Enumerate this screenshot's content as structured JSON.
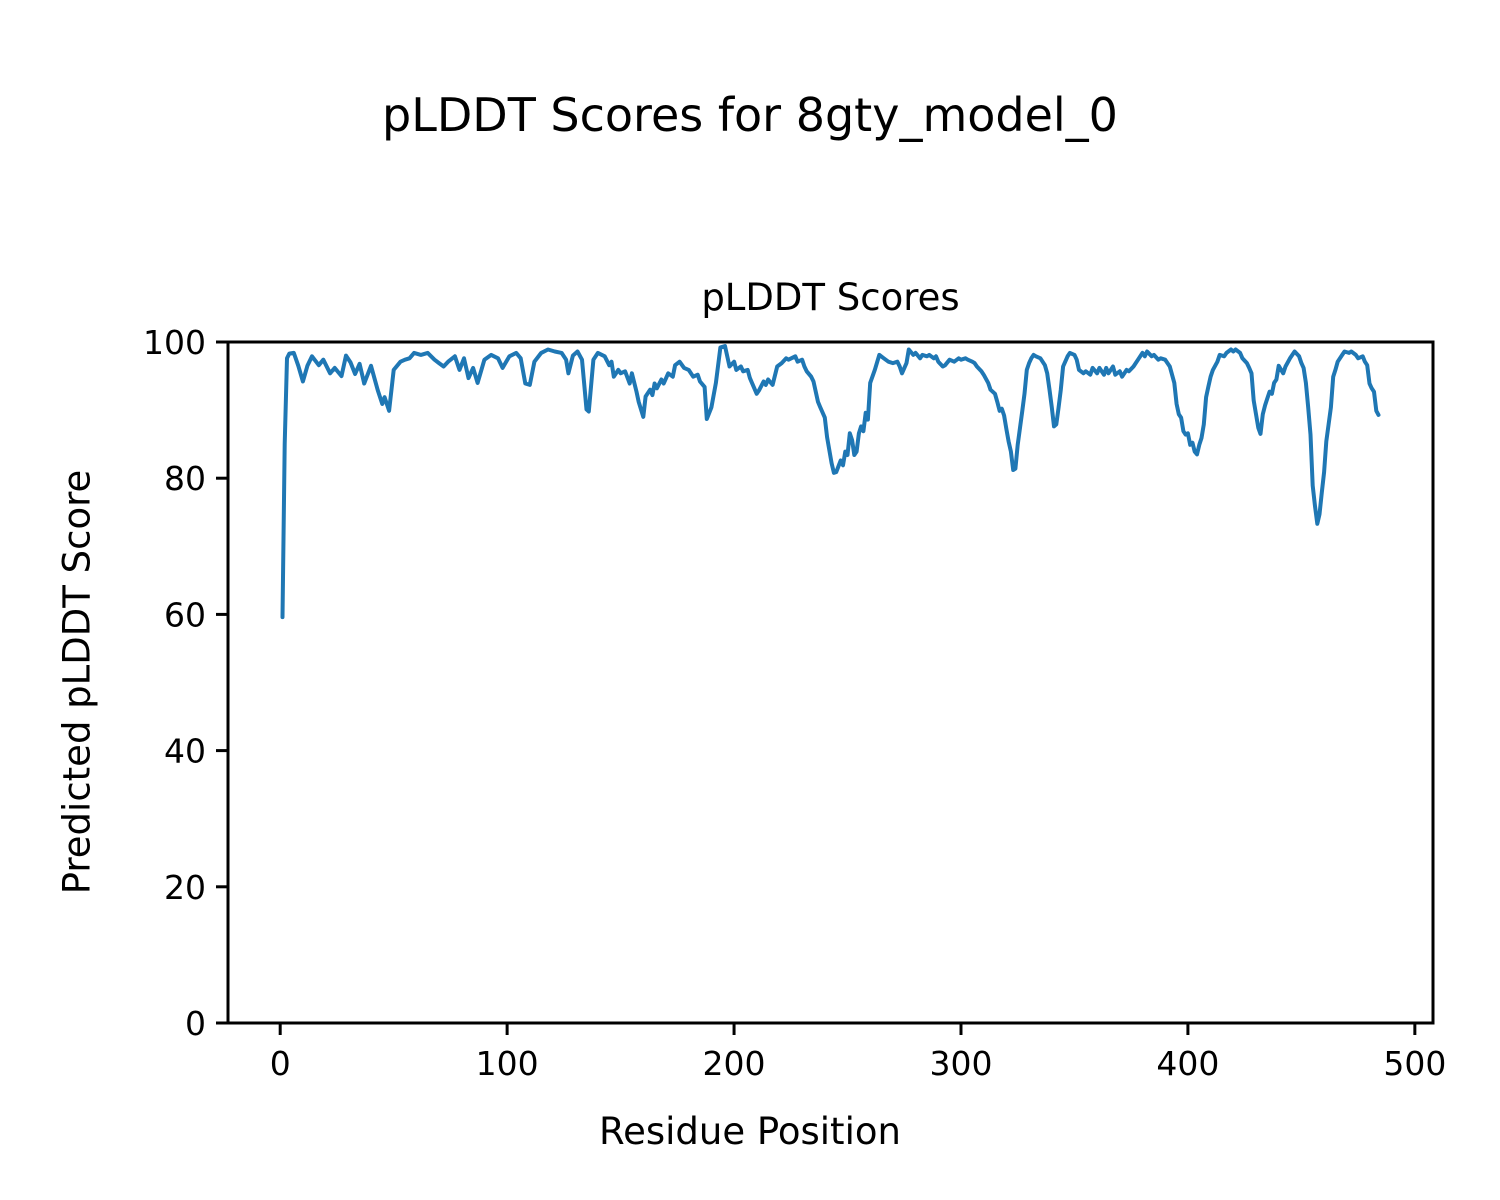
{
  "chart_data": {
    "type": "line",
    "suptitle": "pLDDT Scores for 8gty_model_0",
    "title": "pLDDT Scores",
    "xlabel": "Residue Position",
    "ylabel": "Predicted pLDDT Score",
    "xlim": [
      -23,
      508
    ],
    "ylim": [
      0,
      100
    ],
    "xticks": [
      0,
      100,
      200,
      300,
      400,
      500
    ],
    "yticks": [
      0,
      20,
      40,
      60,
      80,
      100
    ],
    "grid": false,
    "legend": "none",
    "line_color": "#1f77b4",
    "axis_color": "#000000",
    "series": [
      {
        "name": "pLDDT",
        "points": [
          [
            1,
            59.6
          ],
          [
            2,
            85
          ],
          [
            3,
            97.6
          ],
          [
            4,
            98.3
          ],
          [
            6,
            98.4
          ],
          [
            8,
            96.5
          ],
          [
            10,
            94.2
          ],
          [
            12,
            96.5
          ],
          [
            14,
            97.9
          ],
          [
            17,
            96.6
          ],
          [
            19,
            97.4
          ],
          [
            22,
            95.4
          ],
          [
            24,
            96.2
          ],
          [
            27,
            95.0
          ],
          [
            29,
            98.0
          ],
          [
            31,
            97.0
          ],
          [
            33,
            95.3
          ],
          [
            35,
            96.8
          ],
          [
            37,
            93.9
          ],
          [
            40,
            96.5
          ],
          [
            43,
            92.9
          ],
          [
            45,
            90.9
          ],
          [
            46,
            91.9
          ],
          [
            48,
            89.9
          ],
          [
            50,
            95.9
          ],
          [
            53,
            97.1
          ],
          [
            55,
            97.4
          ],
          [
            57,
            97.6
          ],
          [
            59,
            98.4
          ],
          [
            62,
            98.1
          ],
          [
            65,
            98.4
          ],
          [
            68,
            97.4
          ],
          [
            70,
            96.9
          ],
          [
            72,
            96.4
          ],
          [
            74,
            97.1
          ],
          [
            77,
            97.9
          ],
          [
            79,
            95.9
          ],
          [
            81,
            97.6
          ],
          [
            83,
            94.7
          ],
          [
            85,
            96.2
          ],
          [
            87,
            94.0
          ],
          [
            90,
            97.4
          ],
          [
            93,
            98.1
          ],
          [
            96,
            97.6
          ],
          [
            98,
            96.2
          ],
          [
            101,
            97.9
          ],
          [
            104,
            98.4
          ],
          [
            106,
            97.6
          ],
          [
            108,
            93.9
          ],
          [
            110,
            93.7
          ],
          [
            112,
            97.1
          ],
          [
            115,
            98.4
          ],
          [
            118,
            98.9
          ],
          [
            121,
            98.6
          ],
          [
            124,
            98.4
          ],
          [
            126,
            97.4
          ],
          [
            127,
            95.4
          ],
          [
            129,
            98.0
          ],
          [
            131,
            98.6
          ],
          [
            133,
            97.4
          ],
          [
            135,
            90.1
          ],
          [
            136,
            89.8
          ],
          [
            138,
            97.4
          ],
          [
            140,
            98.4
          ],
          [
            143,
            97.9
          ],
          [
            145,
            96.6
          ],
          [
            146,
            97.1
          ],
          [
            147,
            94.9
          ],
          [
            149,
            95.9
          ],
          [
            150,
            95.4
          ],
          [
            152,
            95.7
          ],
          [
            154,
            93.9
          ],
          [
            155,
            95.4
          ],
          [
            157,
            92.7
          ],
          [
            158,
            91.2
          ],
          [
            160,
            89.0
          ],
          [
            161,
            92.0
          ],
          [
            163,
            93.0
          ],
          [
            164,
            92.2
          ],
          [
            165,
            93.9
          ],
          [
            166,
            93.2
          ],
          [
            168,
            94.5
          ],
          [
            169,
            93.9
          ],
          [
            171,
            95.4
          ],
          [
            173,
            94.9
          ],
          [
            174,
            96.6
          ],
          [
            176,
            97.1
          ],
          [
            178,
            96.2
          ],
          [
            180,
            95.9
          ],
          [
            182,
            94.9
          ],
          [
            184,
            95.2
          ],
          [
            185,
            94.2
          ],
          [
            187,
            93.4
          ],
          [
            188,
            88.7
          ],
          [
            190,
            90.4
          ],
          [
            192,
            94.0
          ],
          [
            194,
            99.2
          ],
          [
            196,
            99.4
          ],
          [
            198,
            96.4
          ],
          [
            200,
            97.1
          ],
          [
            201,
            95.9
          ],
          [
            203,
            96.4
          ],
          [
            204,
            95.7
          ],
          [
            206,
            95.9
          ],
          [
            207,
            94.7
          ],
          [
            210,
            92.4
          ],
          [
            211,
            92.9
          ],
          [
            213,
            94.2
          ],
          [
            214,
            93.7
          ],
          [
            215,
            94.5
          ],
          [
            217,
            93.7
          ],
          [
            219,
            96.4
          ],
          [
            221,
            96.9
          ],
          [
            223,
            97.6
          ],
          [
            224,
            97.4
          ],
          [
            227,
            97.9
          ],
          [
            228,
            97.1
          ],
          [
            230,
            97.4
          ],
          [
            231,
            96.4
          ],
          [
            232,
            95.7
          ],
          [
            234,
            94.9
          ],
          [
            235,
            94.2
          ],
          [
            237,
            91.2
          ],
          [
            238,
            90.4
          ],
          [
            240,
            88.9
          ],
          [
            241,
            86.0
          ],
          [
            243,
            82.2
          ],
          [
            244,
            80.8
          ],
          [
            245,
            80.9
          ],
          [
            247,
            82.6
          ],
          [
            248,
            81.9
          ],
          [
            249,
            83.9
          ],
          [
            250,
            83.4
          ],
          [
            251,
            86.6
          ],
          [
            252,
            85.6
          ],
          [
            253,
            83.4
          ],
          [
            254,
            83.9
          ],
          [
            255,
            86.6
          ],
          [
            256,
            87.6
          ],
          [
            257,
            86.9
          ],
          [
            258,
            89.6
          ],
          [
            259,
            88.6
          ],
          [
            260,
            94.0
          ],
          [
            262,
            95.9
          ],
          [
            264,
            98.1
          ],
          [
            266,
            97.6
          ],
          [
            268,
            97.1
          ],
          [
            270,
            96.9
          ],
          [
            272,
            97.1
          ],
          [
            273,
            96.4
          ],
          [
            274,
            95.4
          ],
          [
            276,
            96.9
          ],
          [
            277,
            98.9
          ],
          [
            279,
            98.1
          ],
          [
            280,
            98.4
          ],
          [
            282,
            97.6
          ],
          [
            283,
            98.1
          ],
          [
            285,
            97.9
          ],
          [
            286,
            98.1
          ],
          [
            288,
            97.6
          ],
          [
            289,
            97.9
          ],
          [
            290,
            97.1
          ],
          [
            292,
            96.4
          ],
          [
            293,
            96.6
          ],
          [
            295,
            97.4
          ],
          [
            297,
            97.1
          ],
          [
            299,
            97.6
          ],
          [
            300,
            97.4
          ],
          [
            302,
            97.6
          ],
          [
            303,
            97.4
          ],
          [
            305,
            97.1
          ],
          [
            306,
            96.9
          ],
          [
            307,
            96.4
          ],
          [
            309,
            95.7
          ],
          [
            310,
            95.2
          ],
          [
            312,
            94.0
          ],
          [
            313,
            93.0
          ],
          [
            315,
            92.4
          ],
          [
            316,
            91.2
          ],
          [
            317,
            89.9
          ],
          [
            318,
            90.2
          ],
          [
            319,
            89.2
          ],
          [
            320,
            87.2
          ],
          [
            321,
            85.4
          ],
          [
            322,
            83.9
          ],
          [
            323,
            81.2
          ],
          [
            324,
            81.4
          ],
          [
            325,
            84.9
          ],
          [
            326,
            87.4
          ],
          [
            327,
            89.9
          ],
          [
            328,
            92.4
          ],
          [
            329,
            95.9
          ],
          [
            330,
            96.9
          ],
          [
            331,
            97.6
          ],
          [
            332,
            98.1
          ],
          [
            333,
            97.9
          ],
          [
            335,
            97.6
          ],
          [
            337,
            96.6
          ],
          [
            338,
            95.4
          ],
          [
            339,
            93.0
          ],
          [
            340,
            90.4
          ],
          [
            341,
            87.6
          ],
          [
            342,
            87.9
          ],
          [
            343,
            90.4
          ],
          [
            344,
            93.0
          ],
          [
            345,
            96.4
          ],
          [
            347,
            97.9
          ],
          [
            348,
            98.4
          ],
          [
            350,
            98.1
          ],
          [
            351,
            97.4
          ],
          [
            352,
            95.9
          ],
          [
            354,
            95.4
          ],
          [
            355,
            95.7
          ],
          [
            357,
            95.2
          ],
          [
            358,
            96.2
          ],
          [
            360,
            95.4
          ],
          [
            361,
            96.2
          ],
          [
            363,
            95.2
          ],
          [
            364,
            96.2
          ],
          [
            365,
            95.4
          ],
          [
            367,
            96.4
          ],
          [
            368,
            95.2
          ],
          [
            370,
            95.7
          ],
          [
            371,
            94.9
          ],
          [
            373,
            95.9
          ],
          [
            374,
            95.7
          ],
          [
            376,
            96.4
          ],
          [
            378,
            97.4
          ],
          [
            380,
            98.4
          ],
          [
            381,
            97.9
          ],
          [
            382,
            98.6
          ],
          [
            384,
            97.9
          ],
          [
            385,
            98.1
          ],
          [
            387,
            97.4
          ],
          [
            388,
            97.6
          ],
          [
            390,
            97.4
          ],
          [
            392,
            96.4
          ],
          [
            394,
            94.0
          ],
          [
            395,
            90.9
          ],
          [
            396,
            89.4
          ],
          [
            397,
            88.9
          ],
          [
            398,
            86.9
          ],
          [
            399,
            86.4
          ],
          [
            400,
            86.6
          ],
          [
            401,
            84.9
          ],
          [
            402,
            85.2
          ],
          [
            403,
            83.9
          ],
          [
            404,
            83.5
          ],
          [
            405,
            84.9
          ],
          [
            406,
            85.9
          ],
          [
            407,
            87.9
          ],
          [
            408,
            91.9
          ],
          [
            409,
            93.4
          ],
          [
            410,
            94.9
          ],
          [
            411,
            95.9
          ],
          [
            413,
            97.1
          ],
          [
            414,
            98.1
          ],
          [
            416,
            97.9
          ],
          [
            417,
            98.4
          ],
          [
            419,
            98.9
          ],
          [
            420,
            98.6
          ],
          [
            421,
            98.9
          ],
          [
            423,
            98.4
          ],
          [
            424,
            97.6
          ],
          [
            426,
            96.9
          ],
          [
            427,
            96.2
          ],
          [
            428,
            95.4
          ],
          [
            429,
            91.4
          ],
          [
            430,
            89.4
          ],
          [
            431,
            87.4
          ],
          [
            432,
            86.5
          ],
          [
            433,
            89.4
          ],
          [
            434,
            90.7
          ],
          [
            435,
            91.7
          ],
          [
            436,
            92.7
          ],
          [
            437,
            92.4
          ],
          [
            438,
            94.0
          ],
          [
            439,
            94.5
          ],
          [
            440,
            96.5
          ],
          [
            442,
            95.4
          ],
          [
            443,
            96.4
          ],
          [
            445,
            97.6
          ],
          [
            447,
            98.6
          ],
          [
            449,
            97.9
          ],
          [
            450,
            96.9
          ],
          [
            451,
            96.2
          ],
          [
            452,
            94.0
          ],
          [
            453,
            90.4
          ],
          [
            454,
            86.4
          ],
          [
            455,
            78.9
          ],
          [
            456,
            75.9
          ],
          [
            457,
            73.3
          ],
          [
            458,
            74.7
          ],
          [
            459,
            77.9
          ],
          [
            460,
            80.9
          ],
          [
            461,
            85.4
          ],
          [
            462,
            87.9
          ],
          [
            463,
            90.4
          ],
          [
            464,
            94.9
          ],
          [
            465,
            95.9
          ],
          [
            466,
            97.1
          ],
          [
            468,
            98.1
          ],
          [
            469,
            98.6
          ],
          [
            471,
            98.4
          ],
          [
            472,
            98.6
          ],
          [
            474,
            98.1
          ],
          [
            475,
            97.6
          ],
          [
            477,
            97.9
          ],
          [
            478,
            97.1
          ],
          [
            479,
            96.6
          ],
          [
            480,
            93.9
          ],
          [
            481,
            93.2
          ],
          [
            482,
            92.7
          ],
          [
            483,
            89.9
          ],
          [
            484,
            89.3
          ]
        ]
      }
    ]
  }
}
